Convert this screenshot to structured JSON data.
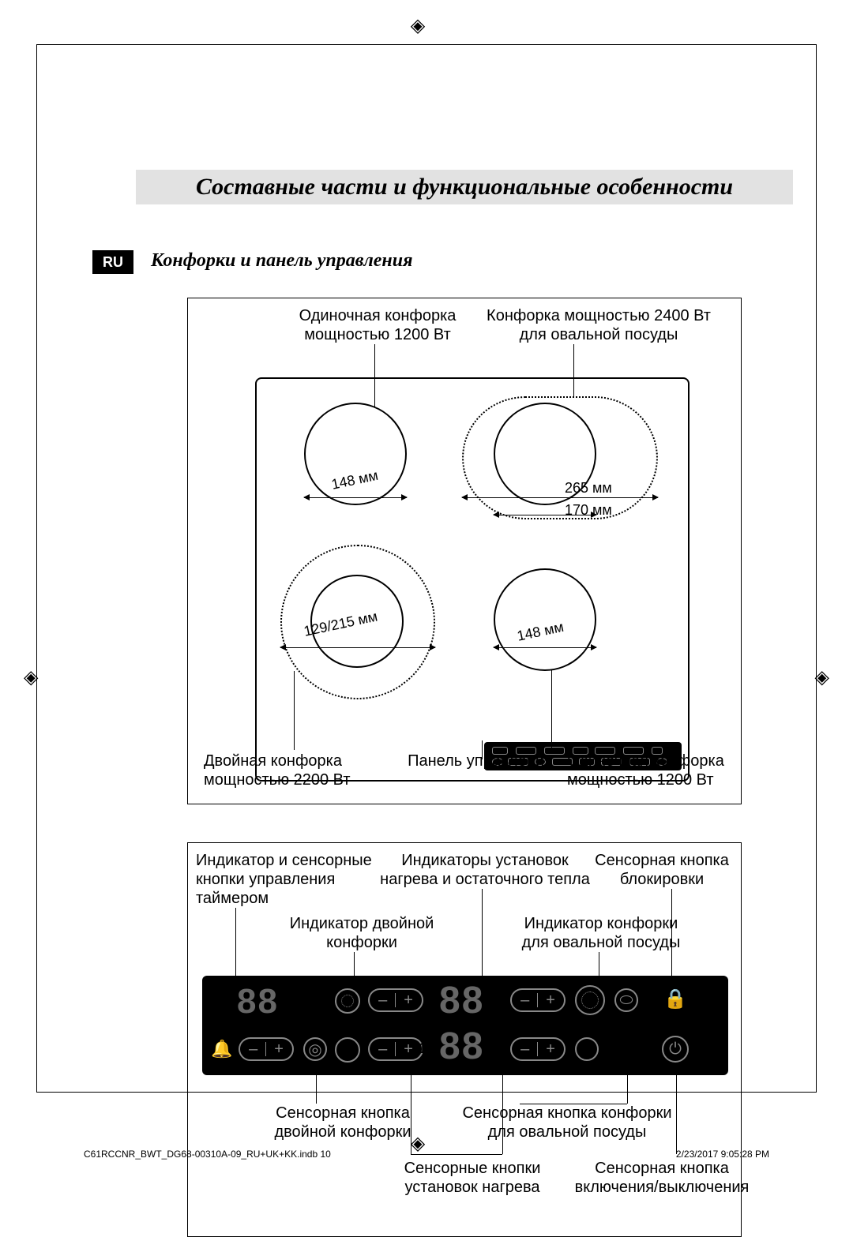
{
  "page": {
    "title": "Составные части и функциональные особенности",
    "lang_tag": "RU",
    "subtitle": "Конфорки и панель управления",
    "page_number": "10",
    "footer_file": "C61RCCNR_BWT_DG68-00310A-09_RU+UK+KK.indb   10",
    "footer_time": "2/23/2017   9:05:28 PM"
  },
  "cropmark_glyph": "◈",
  "diagram1": {
    "labels_top": {
      "single_1200": "Одиночная конфорка\nмощностью 1200 Вт",
      "oval_2400": "Конфорка мощностью 2400 Вт\nдля овальной посуды"
    },
    "labels_bottom": {
      "dual_2200": "Двойная конфорка\nмощностью 2200 Вт",
      "panel": "Панель управления",
      "single_1200_b": "Одиночная конфорка\nмощностью 1200 Вт"
    },
    "dims": {
      "top_left": "148 мм",
      "oval_outer": "265 мм",
      "oval_inner": "170 мм",
      "bottom_left": "129/215 мм",
      "bottom_right": "148 мм"
    },
    "burner_tl_d": 130,
    "burner_tr_d": 130,
    "burner_bl_outer_d": 196,
    "burner_bl_inner_d": 118,
    "burner_br_d": 130,
    "oval_w": 248,
    "oval_h": 156
  },
  "diagram2": {
    "labels_top": {
      "timer": "Индикатор и сенсорные\nкнопки управления\nтаймером",
      "heat_ind": "Индикаторы установок\nнагрева и остаточного тепла",
      "lock": "Сенсорная кнопка\nблокировки",
      "dual_ind": "Индикатор двойной\nконфорки",
      "oval_ind": "Индикатор конфорки\nдля овальной посуды"
    },
    "labels_bottom": {
      "dual_btn": "Сенсорная кнопка\nдвойной конфорки",
      "oval_btn": "Сенсорная кнопка конфорки\nдля овальной посуды",
      "heat_btns": "Сенсорные кнопки\nустановок нагрева",
      "power": "Сенсорная кнопка\nвключения/выключения"
    },
    "seg_placeholder": "88",
    "minus": "–",
    "plus": "+",
    "bell_glyph": "🔔",
    "lock_glyph": "⊙",
    "power_glyph": "⏻",
    "dual_glyph": "◎",
    "oval_glyph": "⬭"
  },
  "colors": {
    "page_bg": "#ffffff",
    "title_bg": "#e2e2e2",
    "panel_bg": "#000000",
    "panel_fg": "#888888",
    "text": "#000000"
  },
  "fontsizes": {
    "title": 30,
    "subtitle": 24,
    "label": 20,
    "dim": 18
  }
}
